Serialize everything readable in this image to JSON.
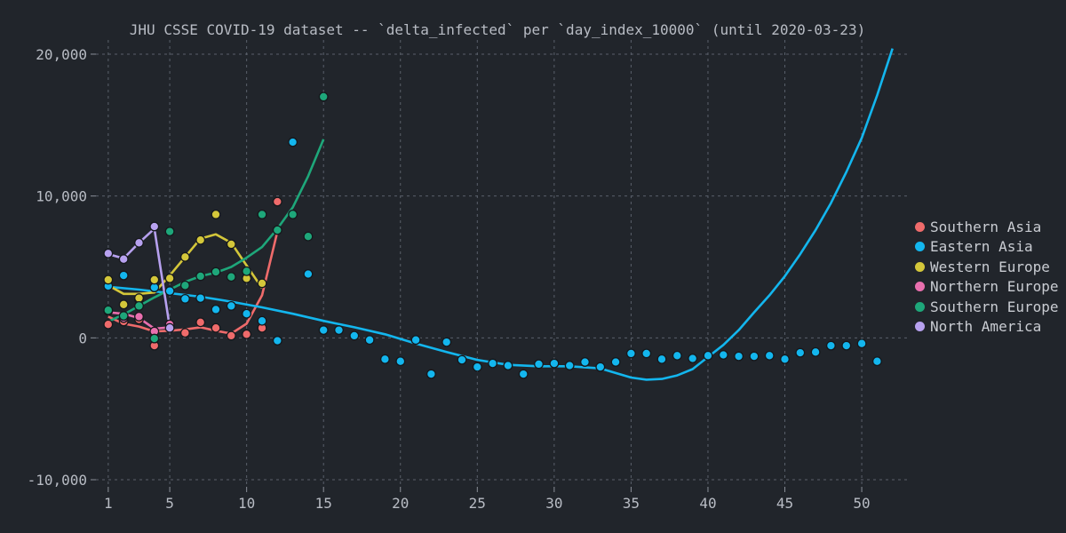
{
  "chart_data": {
    "type": "scatter",
    "title": "JHU CSSE COVID-19 dataset -- `delta_infected` per `day_index_10000` (until 2020-03-23)",
    "xlabel": "",
    "ylabel": "",
    "xlim": [
      0.2,
      53
    ],
    "ylim": [
      -10500,
      21000
    ],
    "x_ticks": [
      1,
      5,
      10,
      15,
      20,
      25,
      30,
      35,
      40,
      45,
      50
    ],
    "y_ticks": [
      -10000,
      0,
      10000,
      20000
    ],
    "y_tick_labels": [
      "-10,000",
      "0",
      "10,000",
      "20,000"
    ],
    "grid": true,
    "legend_position": "right",
    "series": [
      {
        "name": "Southern Asia",
        "color": "#ef6b6b",
        "points": [
          [
            1,
            950
          ],
          [
            2,
            1150
          ],
          [
            3,
            1300
          ],
          [
            4,
            -550
          ],
          [
            5,
            950
          ],
          [
            6,
            350
          ],
          [
            7,
            1100
          ],
          [
            8,
            700
          ],
          [
            9,
            150
          ],
          [
            10,
            250
          ],
          [
            11,
            700
          ],
          [
            12,
            9600
          ]
        ],
        "trend": [
          [
            1,
            1500
          ],
          [
            2,
            1000
          ],
          [
            3,
            800
          ],
          [
            4,
            450
          ],
          [
            5,
            500
          ],
          [
            6,
            600
          ],
          [
            7,
            750
          ],
          [
            8,
            500
          ],
          [
            9,
            300
          ],
          [
            10,
            1000
          ],
          [
            11,
            3000
          ],
          [
            12,
            7500
          ]
        ]
      },
      {
        "name": "Eastern Asia",
        "color": "#13b6ee",
        "points": [
          [
            1,
            3650
          ],
          [
            2,
            4400
          ],
          [
            3,
            2700
          ],
          [
            4,
            3550
          ],
          [
            5,
            3300
          ],
          [
            6,
            2750
          ],
          [
            7,
            2800
          ],
          [
            8,
            2000
          ],
          [
            9,
            2250
          ],
          [
            10,
            1700
          ],
          [
            11,
            1200
          ],
          [
            12,
            -200
          ],
          [
            13,
            13800
          ],
          [
            14,
            4500
          ],
          [
            15,
            550
          ],
          [
            16,
            550
          ],
          [
            17,
            150
          ],
          [
            18,
            -150
          ],
          [
            19,
            -1500
          ],
          [
            20,
            -1650
          ],
          [
            21,
            -150
          ],
          [
            22,
            -2550
          ],
          [
            23,
            -300
          ],
          [
            24,
            -1550
          ],
          [
            25,
            -2050
          ],
          [
            26,
            -1800
          ],
          [
            27,
            -1950
          ],
          [
            28,
            -2550
          ],
          [
            29,
            -1850
          ],
          [
            30,
            -1800
          ],
          [
            31,
            -1950
          ],
          [
            32,
            -1700
          ],
          [
            33,
            -2050
          ],
          [
            34,
            -1700
          ],
          [
            35,
            -1100
          ],
          [
            36,
            -1100
          ],
          [
            37,
            -1500
          ],
          [
            38,
            -1250
          ],
          [
            39,
            -1450
          ],
          [
            40,
            -1250
          ],
          [
            41,
            -1200
          ],
          [
            42,
            -1300
          ],
          [
            43,
            -1300
          ],
          [
            44,
            -1250
          ],
          [
            45,
            -1500
          ],
          [
            46,
            -1050
          ],
          [
            47,
            -1000
          ],
          [
            48,
            -550
          ],
          [
            49,
            -550
          ],
          [
            50,
            -400
          ],
          [
            51,
            -1650
          ]
        ],
        "trend": [
          [
            1,
            3600
          ],
          [
            3,
            3400
          ],
          [
            5,
            3150
          ],
          [
            7,
            2900
          ],
          [
            9,
            2550
          ],
          [
            11,
            2150
          ],
          [
            13,
            1700
          ],
          [
            15,
            1200
          ],
          [
            17,
            750
          ],
          [
            19,
            250
          ],
          [
            21,
            -400
          ],
          [
            23,
            -1000
          ],
          [
            25,
            -1550
          ],
          [
            27,
            -1900
          ],
          [
            29,
            -2000
          ],
          [
            31,
            -2000
          ],
          [
            33,
            -2150
          ],
          [
            35,
            -2800
          ],
          [
            36,
            -2950
          ],
          [
            37,
            -2900
          ],
          [
            38,
            -2650
          ],
          [
            39,
            -2200
          ],
          [
            40,
            -1350
          ],
          [
            41,
            -500
          ],
          [
            42,
            550
          ],
          [
            43,
            1800
          ],
          [
            44,
            3000
          ],
          [
            45,
            4350
          ],
          [
            46,
            5900
          ],
          [
            47,
            7600
          ],
          [
            48,
            9500
          ],
          [
            49,
            11700
          ],
          [
            50,
            14100
          ],
          [
            51,
            17100
          ],
          [
            52,
            20400
          ]
        ]
      },
      {
        "name": "Western Europe",
        "color": "#d4c73a",
        "points": [
          [
            1,
            4100
          ],
          [
            2,
            2350
          ],
          [
            3,
            2800
          ],
          [
            4,
            4100
          ],
          [
            5,
            4200
          ],
          [
            6,
            5700
          ],
          [
            7,
            6900
          ],
          [
            8,
            8700
          ],
          [
            9,
            6600
          ],
          [
            10,
            4200
          ],
          [
            11,
            3850
          ]
        ],
        "trend": [
          [
            1,
            3700
          ],
          [
            2,
            3100
          ],
          [
            3,
            3100
          ],
          [
            4,
            3200
          ],
          [
            5,
            4400
          ],
          [
            6,
            5700
          ],
          [
            7,
            7000
          ],
          [
            8,
            7300
          ],
          [
            9,
            6700
          ],
          [
            10,
            5100
          ],
          [
            11,
            3500
          ]
        ]
      },
      {
        "name": "Northern Europe",
        "color": "#e96fae",
        "points": [
          [
            1,
            1900
          ],
          [
            2,
            1400
          ],
          [
            3,
            1500
          ],
          [
            4,
            450
          ],
          [
            5,
            950
          ]
        ],
        "trend": [
          [
            1,
            1800
          ],
          [
            2,
            1700
          ],
          [
            3,
            1400
          ],
          [
            4,
            650
          ],
          [
            5,
            750
          ]
        ]
      },
      {
        "name": "Southern Europe",
        "color": "#1ea77a",
        "points": [
          [
            1,
            1950
          ],
          [
            2,
            1550
          ],
          [
            3,
            2250
          ],
          [
            4,
            -50
          ],
          [
            5,
            7500
          ],
          [
            6,
            3700
          ],
          [
            7,
            4350
          ],
          [
            8,
            4650
          ],
          [
            9,
            4300
          ],
          [
            10,
            4700
          ],
          [
            11,
            8700
          ],
          [
            12,
            7600
          ],
          [
            13,
            8700
          ],
          [
            14,
            7150
          ],
          [
            15,
            17000
          ]
        ],
        "trend": [
          [
            1,
            1150
          ],
          [
            2,
            1650
          ],
          [
            3,
            2250
          ],
          [
            4,
            2850
          ],
          [
            5,
            3400
          ],
          [
            6,
            3950
          ],
          [
            7,
            4350
          ],
          [
            8,
            4600
          ],
          [
            9,
            5000
          ],
          [
            10,
            5650
          ],
          [
            11,
            6400
          ],
          [
            12,
            7700
          ],
          [
            13,
            9200
          ],
          [
            14,
            11400
          ],
          [
            15,
            14000
          ]
        ]
      },
      {
        "name": "North America",
        "color": "#b7a1ef",
        "points": [
          [
            1,
            5950
          ],
          [
            2,
            5550
          ],
          [
            3,
            6700
          ],
          [
            4,
            7850
          ],
          [
            5,
            700
          ]
        ],
        "trend": [
          [
            1,
            5900
          ],
          [
            2,
            5600
          ],
          [
            3,
            6700
          ],
          [
            4,
            7700
          ],
          [
            5,
            750
          ]
        ]
      }
    ]
  }
}
